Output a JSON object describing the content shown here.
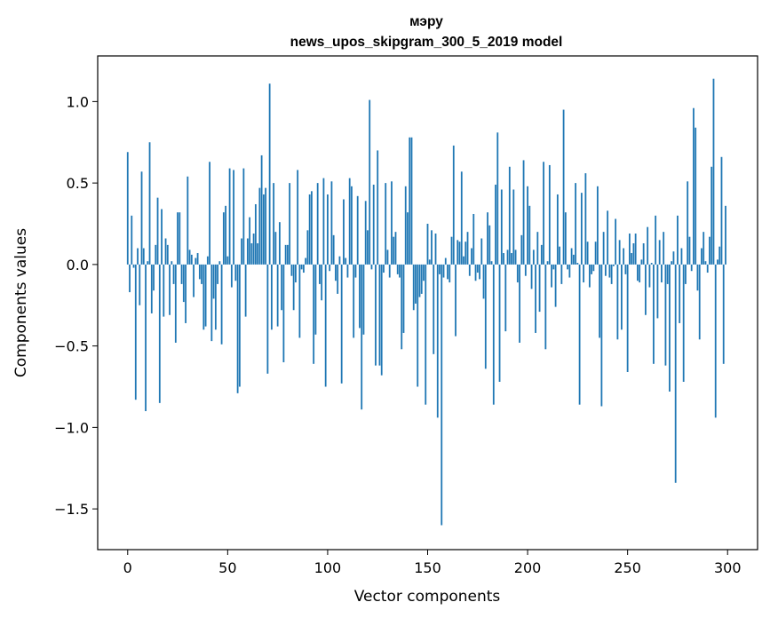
{
  "chart_data": {
    "type": "bar",
    "title_line1": "мэру",
    "title_line2": "news_upos_skipgram_300_5_2019 model",
    "xlabel": "Vector components",
    "ylabel": "Components values",
    "xlim": [
      -15,
      315
    ],
    "ylim": [
      -1.75,
      1.28
    ],
    "xticks": [
      0,
      50,
      100,
      150,
      200,
      250,
      300
    ],
    "xtick_labels": [
      "0",
      "50",
      "100",
      "150",
      "200",
      "250",
      "300"
    ],
    "yticks": [
      -1.5,
      -1.0,
      -0.5,
      0.0,
      0.5,
      1.0
    ],
    "ytick_labels": [
      "−1.5",
      "−1.0",
      "−0.5",
      "0.0",
      "0.5",
      "1.0"
    ],
    "bar_color": "#1f77b4",
    "grid": false,
    "values": [
      0.69,
      -0.17,
      0.3,
      -0.02,
      -0.83,
      0.1,
      -0.25,
      0.57,
      0.1,
      -0.9,
      0.02,
      0.75,
      -0.3,
      -0.16,
      0.12,
      0.41,
      -0.85,
      0.34,
      -0.32,
      0.16,
      0.12,
      -0.31,
      0.02,
      -0.12,
      -0.48,
      0.32,
      0.32,
      -0.12,
      -0.23,
      -0.36,
      0.54,
      0.09,
      0.06,
      -0.2,
      0.04,
      0.07,
      -0.09,
      -0.12,
      -0.4,
      -0.38,
      0.05,
      0.63,
      -0.47,
      -0.21,
      -0.4,
      -0.12,
      0.02,
      -0.49,
      0.32,
      0.36,
      0.05,
      0.59,
      -0.14,
      0.58,
      -0.1,
      -0.79,
      -0.75,
      0.16,
      0.59,
      -0.32,
      0.16,
      0.29,
      0.13,
      0.19,
      0.37,
      0.13,
      0.47,
      0.67,
      0.43,
      0.47,
      -0.67,
      1.11,
      -0.4,
      0.5,
      0.2,
      -0.38,
      0.26,
      -0.28,
      -0.6,
      0.12,
      0.12,
      0.5,
      -0.07,
      -0.28,
      -0.11,
      0.58,
      -0.45,
      -0.03,
      -0.05,
      0.04,
      0.21,
      0.43,
      0.45,
      -0.61,
      -0.43,
      0.5,
      -0.12,
      -0.22,
      0.53,
      -0.75,
      0.43,
      -0.04,
      0.51,
      0.18,
      -0.1,
      -0.18,
      0.05,
      -0.73,
      0.4,
      0.04,
      -0.08,
      0.53,
      0.48,
      -0.45,
      -0.08,
      0.42,
      -0.39,
      -0.89,
      -0.43,
      0.39,
      0.21,
      1.01,
      -0.03,
      0.49,
      -0.62,
      0.7,
      -0.62,
      -0.68,
      -0.05,
      0.5,
      0.09,
      -0.08,
      0.51,
      0.17,
      0.2,
      -0.06,
      -0.08,
      -0.52,
      -0.42,
      0.48,
      0.32,
      0.78,
      0.78,
      -0.28,
      -0.24,
      -0.75,
      -0.2,
      -0.18,
      -0.1,
      -0.86,
      0.25,
      0.03,
      0.21,
      -0.55,
      0.19,
      -0.94,
      -0.06,
      -1.6,
      -0.08,
      0.04,
      -0.09,
      -0.11,
      0.17,
      0.73,
      -0.44,
      0.15,
      0.14,
      0.57,
      0.05,
      0.14,
      0.2,
      -0.07,
      0.1,
      0.31,
      -0.1,
      -0.05,
      -0.09,
      0.16,
      -0.21,
      -0.64,
      0.32,
      0.24,
      0.02,
      -0.86,
      0.49,
      0.81,
      -0.72,
      0.46,
      0.07,
      -0.41,
      0.09,
      0.6,
      0.07,
      0.46,
      0.09,
      -0.11,
      -0.48,
      0.18,
      0.64,
      -0.07,
      0.48,
      0.36,
      -0.15,
      0.09,
      -0.42,
      0.2,
      -0.29,
      0.12,
      0.63,
      -0.52,
      0.02,
      0.61,
      -0.14,
      -0.03,
      -0.26,
      0.43,
      0.11,
      -0.12,
      0.95,
      0.32,
      -0.03,
      -0.08,
      0.1,
      0.06,
      0.5,
      0.01,
      -0.86,
      0.44,
      -0.11,
      0.56,
      0.14,
      -0.14,
      -0.06,
      -0.04,
      0.14,
      0.48,
      -0.45,
      -0.87,
      0.2,
      -0.07,
      0.33,
      -0.08,
      -0.12,
      -0.01,
      0.28,
      -0.46,
      0.15,
      -0.4,
      0.1,
      -0.06,
      -0.66,
      0.19,
      0.07,
      0.13,
      0.19,
      -0.1,
      -0.11,
      0.03,
      0.13,
      -0.31,
      0.23,
      -0.14,
      0.01,
      -0.61,
      0.3,
      -0.33,
      0.15,
      -0.11,
      0.2,
      -0.62,
      -0.12,
      -0.78,
      0.02,
      0.08,
      -1.34,
      0.3,
      -0.36,
      0.1,
      -0.72,
      -0.12,
      0.51,
      0.17,
      -0.04,
      0.96,
      0.84,
      -0.16,
      -0.46,
      0.1,
      0.2,
      0.02,
      -0.05,
      0.17,
      0.6,
      1.14,
      -0.94,
      0.03,
      0.11,
      0.66,
      -0.61,
      0.36
    ]
  }
}
